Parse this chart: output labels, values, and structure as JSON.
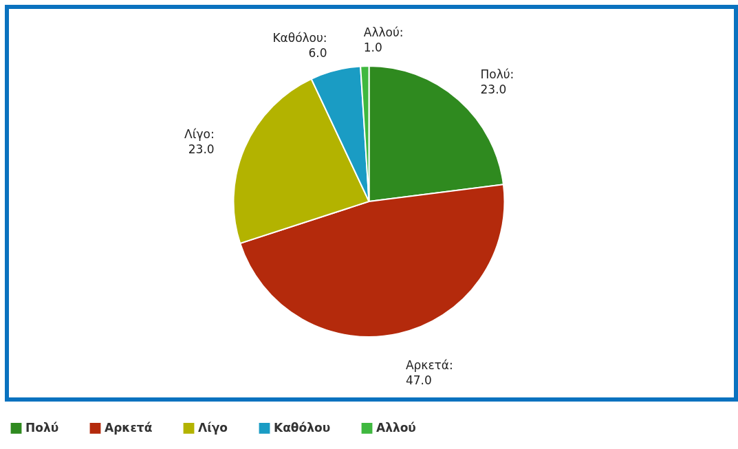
{
  "chart_data": {
    "type": "pie",
    "categories": [
      "Πολύ",
      "Αρκετά",
      "Λίγο",
      "Καθόλου",
      "Αλλού"
    ],
    "values": [
      23,
      47,
      23,
      6,
      1
    ],
    "value_labels": [
      "Πολύ:\n23.0",
      "Αρκετά:\n47.0",
      "Λίγο:\n23.0",
      "Καθόλου:\n6.0",
      "Αλλού:\n1.0"
    ],
    "colors": [
      "#2f8a1f",
      "#b42a0c",
      "#b3b300",
      "#1a9cc4",
      "#3fb83f"
    ],
    "legend": "bottom"
  }
}
